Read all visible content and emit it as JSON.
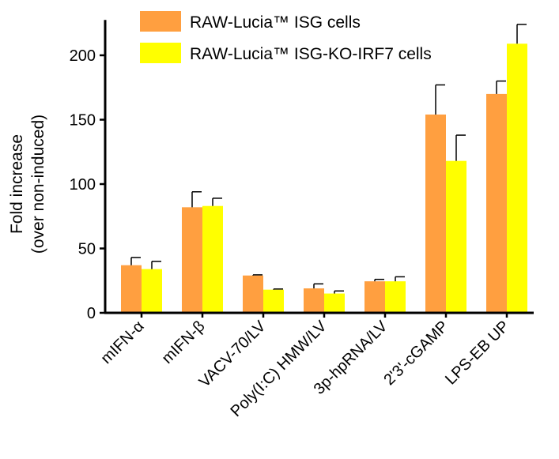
{
  "chart_data": {
    "type": "bar",
    "ylabel": "Fold increase",
    "ylabel2": "(over non-induced)",
    "ylim": [
      0,
      225
    ],
    "yticks": [
      0,
      50,
      100,
      150,
      200
    ],
    "grid": false,
    "legend_position": "top",
    "categories": [
      "mIFN-α",
      "mIFN-β",
      "VACV-70/LV",
      "Poly(I:C) HMW/LV",
      "3p-hpRNA/LV",
      "2'3'-cGAMP",
      "LPS-EB UP"
    ],
    "series": [
      {
        "name": "RAW-Lucia™ ISG cells",
        "color": "#FF9F40",
        "values": [
          37,
          82,
          29,
          19,
          24.5,
          154,
          170
        ],
        "errors": [
          6,
          12,
          0.5,
          3.5,
          1.5,
          23,
          10
        ]
      },
      {
        "name": "RAW-Lucia™ ISG-KO-IRF7 cells",
        "color": "#FFFF00",
        "values": [
          34,
          83,
          18,
          15,
          24.5,
          118,
          209
        ],
        "errors": [
          6,
          6,
          0.5,
          2,
          3.5,
          20,
          15
        ]
      }
    ]
  }
}
